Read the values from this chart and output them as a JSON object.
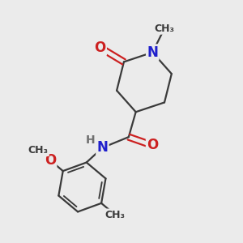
{
  "bg_color": "#ebebeb",
  "bond_color": "#3a3a3a",
  "N_color": "#2020cc",
  "O_color": "#cc2020",
  "H_color": "#707070",
  "C_color": "#3a3a3a",
  "bond_width": 1.6,
  "fig_size": [
    3.0,
    3.0
  ],
  "dpi": 100,
  "xlim": [
    0,
    10
  ],
  "ylim": [
    0,
    10
  ]
}
